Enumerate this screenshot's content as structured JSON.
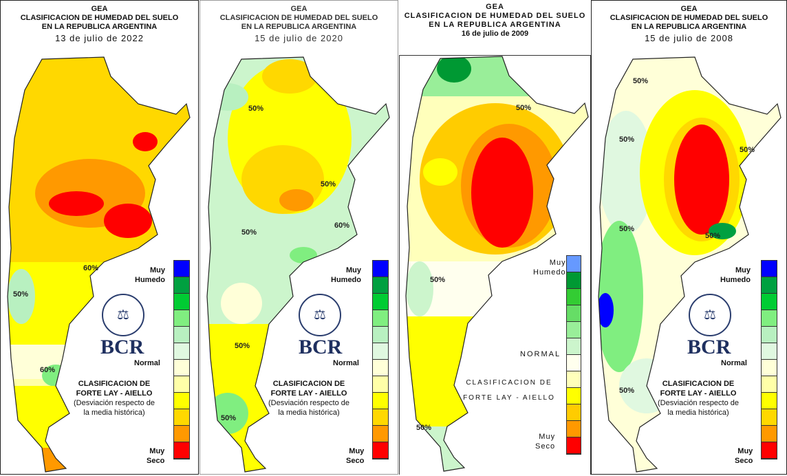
{
  "panels": [
    {
      "title1": "GEA",
      "title2": "CLASIFICACION DE HUMEDAD DEL SUELO",
      "title3": "EN LA REPUBLICA ARGENTINA",
      "date": "13 de julio de 2022",
      "contours": [
        "60%",
        "50%",
        "60%"
      ]
    },
    {
      "title1": "GEA",
      "title2": "CLASIFICACION DE HUMEDAD DEL SUELO",
      "title3": "EN LA REPUBLICA ARGENTINA",
      "date": "15 de julio de 2020",
      "contours": [
        "50%",
        "50%",
        "60%",
        "50%",
        "50%",
        "50%"
      ]
    },
    {
      "title1": "GEA",
      "title2": "CLASIFICACION DE HUMEDAD DEL SUELO",
      "title3": "EN LA REPUBLICA ARGENTINA",
      "date": "16 de julio de 2009",
      "contours": [
        "50%",
        "50%",
        "50%"
      ]
    },
    {
      "title1": "GEA",
      "title2": "CLASIFICACION DE HUMEDAD DEL SUELO",
      "title3": "EN LA REPUBLICA ARGENTINA",
      "date": "15 de julio de 2008",
      "contours": [
        "50%",
        "50%",
        "50%",
        "50%",
        "50%",
        "50%"
      ]
    }
  ],
  "legend": {
    "muy": "Muy",
    "humedo": "Humedo",
    "normal": "Normal",
    "seco": "Seco",
    "normal_caps": "NORMAL",
    "colors": [
      "#0000ff",
      "#00a040",
      "#00cc33",
      "#80ee80",
      "#b8f0c0",
      "#e0f8e0",
      "#ffffd8",
      "#ffffa8",
      "#ffff00",
      "#ffd800",
      "#ff9900",
      "#ff0000"
    ],
    "colors_2009": [
      "#6699ff",
      "#009933",
      "#33cc33",
      "#66dd66",
      "#99ee99",
      "#ccf5cc",
      "#ffffee",
      "#ffffbb",
      "#ffff00",
      "#ffcc00",
      "#ff9900",
      "#ff0000"
    ]
  },
  "classification": {
    "line1": "CLASIFICACION DE",
    "line2": "FORTE LAY - AIELLO",
    "line3": "(Desviación respecto de",
    "line4": "la media histórica)",
    "line12009": "CLASIFICACION DE",
    "line22009": "FORTE LAY - AIELLO"
  },
  "logo": {
    "text": "BCR",
    "seal": "BOLSA DE COMERCIO DE ROSARIO"
  }
}
